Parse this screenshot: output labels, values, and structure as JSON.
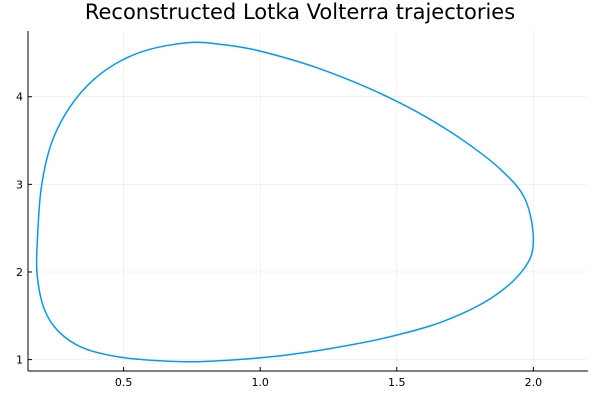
{
  "chart_data": {
    "type": "line",
    "title": "Reconstructed Lotka Volterra trajectories",
    "xlabel": "",
    "ylabel": "",
    "xlim": [
      0.15,
      2.2
    ],
    "ylim": [
      0.87,
      4.75
    ],
    "xticks": [
      0.5,
      1.0,
      1.5,
      2.0
    ],
    "xtick_labels": [
      "0.5",
      "1.0",
      "1.5",
      "2.0"
    ],
    "yticks": [
      1,
      2,
      3,
      4
    ],
    "ytick_labels": [
      "1",
      "2",
      "3",
      "4"
    ],
    "grid": true,
    "legend": "none",
    "colors": {
      "series": "#009AFA",
      "axis": "#000000",
      "background": "#FFFFFF"
    },
    "series": [
      {
        "x": [
          0.75,
          0.848,
          0.962,
          1.083,
          1.206,
          1.335,
          1.47,
          1.607,
          1.748,
          1.88,
          1.97,
          2.0,
          1.965,
          1.845,
          1.662,
          1.455,
          1.263,
          1.097,
          0.96,
          0.838,
          0.75,
          0.64,
          0.487,
          0.354,
          0.263,
          0.209,
          0.183,
          0.185,
          0.199,
          0.237,
          0.304,
          0.39,
          0.491,
          0.605,
          0.75
        ],
        "y": [
          4.62,
          4.6,
          4.547,
          4.452,
          4.333,
          4.18,
          3.993,
          3.769,
          3.491,
          3.17,
          2.83,
          2.35,
          2.035,
          1.7,
          1.427,
          1.246,
          1.13,
          1.053,
          1.01,
          0.985,
          0.975,
          0.985,
          1.028,
          1.13,
          1.317,
          1.58,
          1.986,
          2.4,
          2.97,
          3.48,
          3.885,
          4.194,
          4.412,
          4.548,
          4.62
        ]
      }
    ]
  }
}
